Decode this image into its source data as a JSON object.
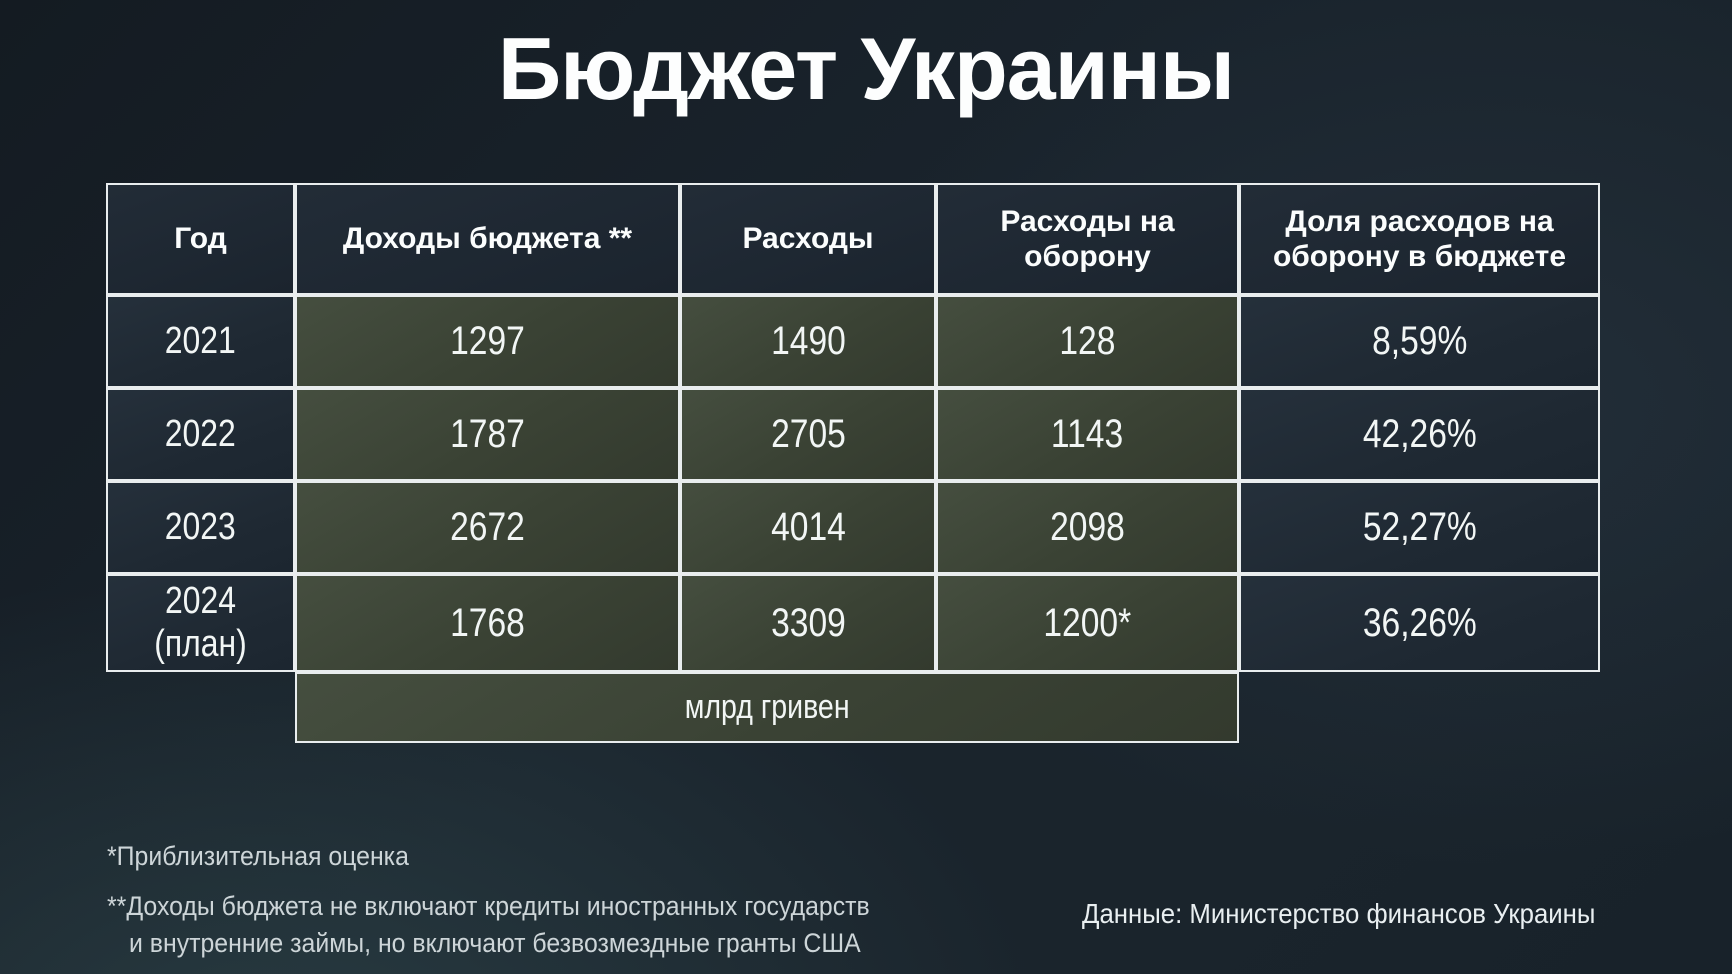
{
  "title": "Бюджет Украины",
  "chart_data": {
    "type": "table",
    "title": "Бюджет Украины",
    "columns": [
      "Год",
      "Доходы бюджета **",
      "Расходы",
      "Расходы на оборону",
      "Доля расходов на оборону в бюджете"
    ],
    "rows": [
      [
        "2021",
        "1297",
        "1490",
        "128",
        "8,59%"
      ],
      [
        "2022",
        "1787",
        "2705",
        "1143",
        "42,26%"
      ],
      [
        "2023",
        "2672",
        "4014",
        "2098",
        "52,27%"
      ],
      [
        "2024 (план)",
        "1768",
        "3309",
        "1200*",
        "36,26%"
      ]
    ],
    "unit_label": "млрд гривен",
    "layout": "header row bold; year column and share column dark; value columns olive-green; unit row spans value columns only"
  },
  "footnotes": {
    "line1": "*Приблизительная оценка",
    "line2a": "**Доходы бюджета не включают кредиты иностранных государств",
    "line2b": "и внутренние займы, но включают безвозмездные гранты США"
  },
  "source": "Данные: Министерство финансов Украины",
  "colors": {
    "background_dark": "#151c23",
    "background_teal": "#2a3a40",
    "cell_green": "#3b4335",
    "cell_dark": "#212b35",
    "border": "#e9edee",
    "text": "#ffffff",
    "muted_text": "#cdd5d8"
  }
}
